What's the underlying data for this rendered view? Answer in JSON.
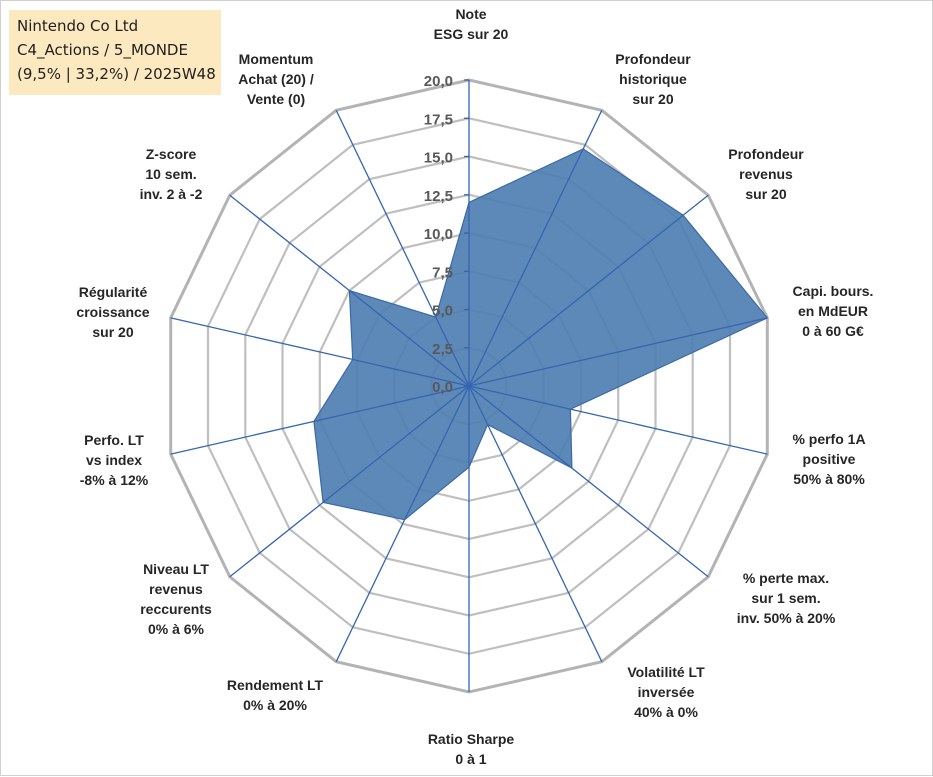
{
  "info": {
    "line1": "Nintendo Co Ltd",
    "line2": "C4_Actions / 5_MONDE",
    "line3": "(9,5% | 33,2%) / 2025W48"
  },
  "chart_data": {
    "type": "radar",
    "title": "",
    "rmin": 0,
    "rmax": 20,
    "ticks": [
      "0,0",
      "2,5",
      "5,0",
      "7,5",
      "10,0",
      "12,5",
      "15,0",
      "17,5",
      "20,0"
    ],
    "tick_values": [
      0,
      2.5,
      5,
      7.5,
      10,
      12.5,
      15,
      17.5,
      20
    ],
    "axes": [
      {
        "label": [
          "Note",
          "ESG sur 20"
        ],
        "value": 12.0
      },
      {
        "label": [
          "Profondeur",
          "historique",
          "sur 20"
        ],
        "value": 17.2
      },
      {
        "label": [
          "Profondeur",
          "revenus",
          "sur 20"
        ],
        "value": 17.9
      },
      {
        "label": [
          "Capi. bours.",
          "en MdEUR",
          "0 à 60 G€"
        ],
        "value": 20.0
      },
      {
        "label": [
          "% perfo 1A",
          "positive",
          "50% à 80%"
        ],
        "value": 6.8
      },
      {
        "label": [
          "% perte max.",
          "sur 1 sem.",
          "inv. 50% à 20%"
        ],
        "value": 8.6
      },
      {
        "label": [
          "Volatilité LT",
          "inversée",
          "40% à 0%"
        ],
        "value": 2.8
      },
      {
        "label": [
          "Ratio Sharpe",
          "0 à 1"
        ],
        "value": 5.3
      },
      {
        "label": [
          "Rendement LT",
          "0% à 20%"
        ],
        "value": 9.7
      },
      {
        "label": [
          "Niveau LT",
          "revenus",
          "reccurents",
          "0% à 6%"
        ],
        "value": 12.2
      },
      {
        "label": [
          "Perfo. LT",
          "vs index",
          "-8% à 12%"
        ],
        "value": 10.4
      },
      {
        "label": [
          "Régularité",
          "croissance",
          "sur 20"
        ],
        "value": 7.8
      },
      {
        "label": [
          "Z-score",
          "10 sem.",
          "inv. 2 à -2"
        ],
        "value": 10.0
      },
      {
        "label": [
          "Momentum",
          "Achat (20) /",
          "Vente (0)"
        ],
        "value": 5.0
      }
    ],
    "series": [
      {
        "name": "Nintendo Co Ltd",
        "fill": "#4f7fb3",
        "stroke": "#3a6aa6"
      }
    ],
    "grid_color": "#bfbfbf",
    "axis_color": "#3565b0"
  }
}
